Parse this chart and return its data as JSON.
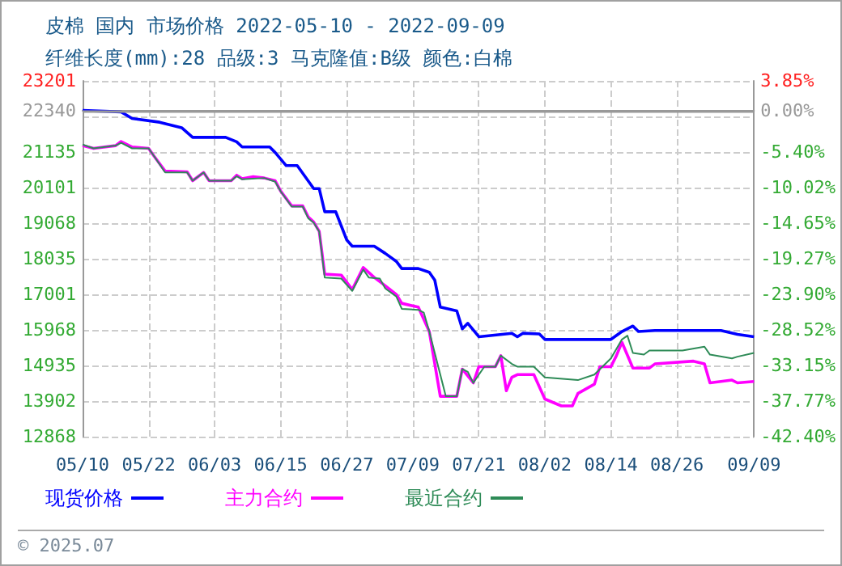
{
  "chart_data": {
    "type": "line",
    "title": "皮棉 国内 市场价格 2022-05-10 - 2022-09-09",
    "subtitle": "纤维长度(mm):28 品级:3 马克隆值:B级 颜色:白棉",
    "annotations": [
      "© 2025.07"
    ],
    "xlim": [
      "2022-05-10",
      "2022-09-09"
    ],
    "xticks": [
      {
        "value": "2022-05-10",
        "label": "05/10"
      },
      {
        "value": "2022-05-22",
        "label": "05/22"
      },
      {
        "value": "2022-06-03",
        "label": "06/03"
      },
      {
        "value": "2022-06-15",
        "label": "06/15"
      },
      {
        "value": "2022-06-27",
        "label": "06/27"
      },
      {
        "value": "2022-07-09",
        "label": "07/09"
      },
      {
        "value": "2022-07-21",
        "label": "07/21"
      },
      {
        "value": "2022-08-02",
        "label": "08/02"
      },
      {
        "value": "2022-08-14",
        "label": "08/14"
      },
      {
        "value": "2022-08-26",
        "label": "08/26"
      },
      {
        "value": "2022-09-09",
        "label": "09/09"
      }
    ],
    "ylim": [
      12868,
      23201
    ],
    "yticks": [
      12868,
      13902,
      14935,
      15968,
      17001,
      18035,
      19068,
      20101,
      21135,
      {
        "value": 22168,
        "label": null
      },
      22340,
      23201
    ],
    "y2lim": [
      -42.4,
      3.85
    ],
    "y2ticks": [
      {
        "value": -42.4,
        "label": "-42.40%"
      },
      {
        "value": -37.77,
        "label": "-37.77%"
      },
      {
        "value": -33.15,
        "label": "-33.15%"
      },
      {
        "value": -28.52,
        "label": "-28.52%"
      },
      {
        "value": -23.9,
        "label": "-23.90%"
      },
      {
        "value": -19.27,
        "label": "-19.27%"
      },
      {
        "value": -14.65,
        "label": "-14.65%"
      },
      {
        "value": -10.02,
        "label": "-10.02%"
      },
      {
        "value": -5.4,
        "label": "-5.40%"
      },
      {
        "value": 0,
        "label": "0.00%"
      },
      {
        "value": 3.85,
        "label": "3.85%"
      }
    ],
    "ref_lines": [
      {
        "axis": "y",
        "value": 22340,
        "color": "#999999",
        "line_style": "solid"
      }
    ],
    "grid": true,
    "legend": "bottom",
    "line_style": "solid",
    "series": [
      {
        "name": "现货价格",
        "color": "#0000ff",
        "x": [
          "2022-05-10",
          "2022-05-17",
          "2022-05-19",
          "2022-05-24",
          "2022-05-28",
          "2022-05-30",
          "2022-06-05",
          "2022-06-07",
          "2022-06-08",
          "2022-06-13",
          "2022-06-14",
          "2022-06-16",
          "2022-06-18",
          "2022-06-21",
          "2022-06-22",
          "2022-06-23",
          "2022-06-25",
          "2022-06-27",
          "2022-06-28",
          "2022-07-02",
          "2022-07-04",
          "2022-07-06",
          "2022-07-07",
          "2022-07-10",
          "2022-07-12",
          "2022-07-13",
          "2022-07-14",
          "2022-07-17",
          "2022-07-18",
          "2022-07-19",
          "2022-07-21",
          "2022-07-27",
          "2022-07-28",
          "2022-07-29",
          "2022-08-01",
          "2022-08-02",
          "2022-08-14",
          "2022-08-16",
          "2022-08-18",
          "2022-08-19",
          "2022-08-22",
          "2022-09-03",
          "2022-09-06",
          "2022-09-09"
        ],
        "values": [
          22340,
          22300,
          22110,
          22000,
          21840,
          21560,
          21560,
          21430,
          21280,
          21280,
          21120,
          20740,
          20740,
          20070,
          20070,
          19400,
          19400,
          18580,
          18400,
          18400,
          18190,
          17960,
          17750,
          17750,
          17640,
          17410,
          16630,
          16520,
          16000,
          16160,
          15770,
          15870,
          15770,
          15870,
          15850,
          15690,
          15690,
          15920,
          16080,
          15920,
          15950,
          15950,
          15840,
          15770
        ]
      },
      {
        "name": "主力合约",
        "color": "#ff00ff",
        "x": [
          "2022-05-10",
          "2022-05-12",
          "2022-05-16",
          "2022-05-17",
          "2022-05-19",
          "2022-05-22",
          "2022-05-23",
          "2022-05-25",
          "2022-05-29",
          "2022-05-30",
          "2022-06-01",
          "2022-06-02",
          "2022-06-06",
          "2022-06-07",
          "2022-06-08",
          "2022-06-10",
          "2022-06-12",
          "2022-06-14",
          "2022-06-15",
          "2022-06-17",
          "2022-06-19",
          "2022-06-20",
          "2022-06-21",
          "2022-06-22",
          "2022-06-23",
          "2022-06-26",
          "2022-06-28",
          "2022-06-30",
          "2022-07-02",
          "2022-07-04",
          "2022-07-06",
          "2022-07-07",
          "2022-07-10",
          "2022-07-12",
          "2022-07-14",
          "2022-07-17",
          "2022-07-18",
          "2022-07-20",
          "2022-07-21",
          "2022-07-24",
          "2022-07-25",
          "2022-07-26",
          "2022-07-27",
          "2022-07-28",
          "2022-07-31",
          "2022-08-02",
          "2022-08-05",
          "2022-08-07",
          "2022-08-08",
          "2022-08-11",
          "2022-08-12",
          "2022-08-14",
          "2022-08-15",
          "2022-08-16",
          "2022-08-18",
          "2022-08-21",
          "2022-08-22",
          "2022-08-29",
          "2022-08-31",
          "2022-09-01",
          "2022-09-05",
          "2022-09-06",
          "2022-09-09"
        ],
        "values": [
          21320,
          21240,
          21320,
          21440,
          21280,
          21240,
          21010,
          20580,
          20560,
          20300,
          20540,
          20300,
          20300,
          20460,
          20360,
          20420,
          20380,
          20300,
          20000,
          19570,
          19570,
          19250,
          19100,
          18830,
          17590,
          17560,
          17140,
          17780,
          17490,
          17250,
          17000,
          16740,
          16630,
          15920,
          14040,
          14040,
          14830,
          14430,
          14900,
          14900,
          15220,
          14200,
          14590,
          14670,
          14670,
          13960,
          13760,
          13760,
          14120,
          14390,
          14900,
          14900,
          15220,
          15610,
          14860,
          14860,
          14980,
          15060,
          14980,
          14430,
          14510,
          14430,
          14470
        ]
      },
      {
        "name": "最近合约",
        "color": "#2e8b57",
        "x": [
          "2022-05-10",
          "2022-05-12",
          "2022-05-16",
          "2022-05-17",
          "2022-05-19",
          "2022-05-22",
          "2022-05-23",
          "2022-05-25",
          "2022-05-29",
          "2022-05-30",
          "2022-06-01",
          "2022-06-02",
          "2022-06-06",
          "2022-06-07",
          "2022-06-08",
          "2022-06-12",
          "2022-06-14",
          "2022-06-15",
          "2022-06-17",
          "2022-06-19",
          "2022-06-20",
          "2022-06-21",
          "2022-06-22",
          "2022-06-23",
          "2022-06-26",
          "2022-06-28",
          "2022-06-30",
          "2022-07-01",
          "2022-07-03",
          "2022-07-04",
          "2022-07-06",
          "2022-07-07",
          "2022-07-10",
          "2022-07-11",
          "2022-07-12",
          "2022-07-15",
          "2022-07-17",
          "2022-07-18",
          "2022-07-19",
          "2022-07-20",
          "2022-07-22",
          "2022-07-24",
          "2022-07-25",
          "2022-07-27",
          "2022-07-28",
          "2022-07-31",
          "2022-08-02",
          "2022-08-08",
          "2022-08-11",
          "2022-08-14",
          "2022-08-16",
          "2022-08-17",
          "2022-08-18",
          "2022-08-20",
          "2022-08-21",
          "2022-08-27",
          "2022-08-31",
          "2022-09-01",
          "2022-09-05",
          "2022-09-06",
          "2022-09-09"
        ],
        "values": [
          21350,
          21240,
          21320,
          21400,
          21240,
          21240,
          21010,
          20540,
          20540,
          20300,
          20540,
          20300,
          20300,
          20430,
          20340,
          20380,
          20270,
          19990,
          19550,
          19550,
          19210,
          19080,
          18820,
          17490,
          17460,
          17100,
          17720,
          17490,
          17460,
          17170,
          16940,
          16580,
          16550,
          16470,
          15920,
          14040,
          14040,
          14830,
          14750,
          14430,
          14900,
          14900,
          15220,
          14980,
          14900,
          14900,
          14590,
          14510,
          14670,
          15140,
          15690,
          15800,
          15300,
          15250,
          15370,
          15370,
          15480,
          15250,
          15140,
          15190,
          15300
        ]
      }
    ]
  }
}
